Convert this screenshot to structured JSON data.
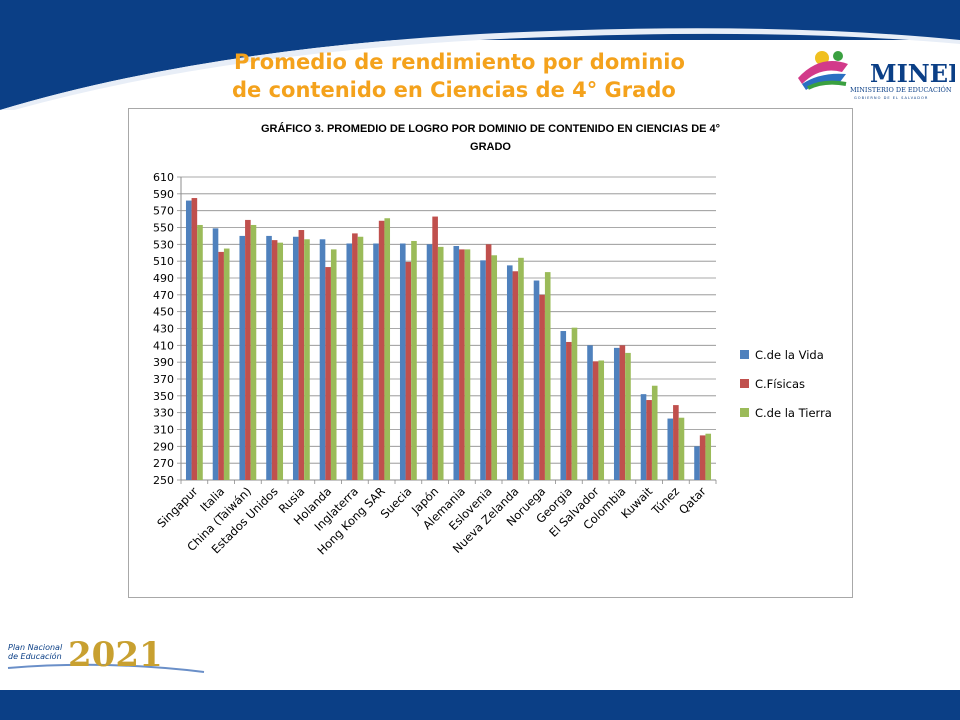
{
  "slide": {
    "title_line1": "Promedio de rendimiento por dominio",
    "title_line2": "de contenido en Ciencias de 4° Grado",
    "logo_mined": {
      "name": "MINED",
      "text": "MINISTERIO DE EDUCACIÓN",
      "subtext": "GOBIERNO DE EL SALVADOR"
    },
    "logo_plan": {
      "text1": "Plan Nacional",
      "text2": "de Educación",
      "year": "2021"
    },
    "colors": {
      "band": "#0b3f86",
      "title": "#f4a21c"
    }
  },
  "chart_data": {
    "type": "bar",
    "title": "GRÁFICO 3. PROMEDIO  DE LOGRO POR DOMINIO DE CONTENIDO EN CIENCIAS DE 4°",
    "title_line2": "GRADO",
    "categories": [
      "Singapur",
      "Italia",
      "China (Taiwán)",
      "Estados Unidos",
      "Rusia",
      "Holanda",
      "Inglaterra",
      "Hong Kong SAR",
      "Suecia",
      "Japón",
      "Alemania",
      "Eslovenia",
      "Nueva Zelanda",
      "Noruega",
      "Georgia",
      "El Salvador",
      "Colombia",
      "Kuwait",
      "Túnez",
      "Qatar"
    ],
    "series": [
      {
        "name": "C.de la Vida",
        "color": "#4f81bd",
        "values": [
          582,
          549,
          540,
          540,
          539,
          536,
          531,
          531,
          531,
          530,
          528,
          511,
          505,
          487,
          427,
          410,
          407,
          352,
          323,
          290
        ]
      },
      {
        "name": "C.Físicas",
        "color": "#c0504d",
        "values": [
          585,
          521,
          559,
          535,
          547,
          503,
          543,
          558,
          509,
          563,
          524,
          530,
          498,
          470,
          414,
          391,
          410,
          345,
          339,
          303
        ]
      },
      {
        "name": "C.de la Tierra",
        "color": "#9bbb59",
        "values": [
          553,
          525,
          553,
          532,
          536,
          524,
          539,
          561,
          534,
          527,
          524,
          517,
          514,
          497,
          431,
          392,
          401,
          362,
          324,
          305
        ]
      }
    ],
    "y_ticks": [
      "610",
      "590",
      "570",
      "550",
      "530",
      "510",
      "490",
      "470",
      "450",
      "430",
      "410",
      "390",
      "370",
      "350",
      "330",
      "310",
      "290",
      "270",
      "250"
    ],
    "ylim": [
      250,
      610
    ],
    "grid": true,
    "legend_position": "right"
  }
}
